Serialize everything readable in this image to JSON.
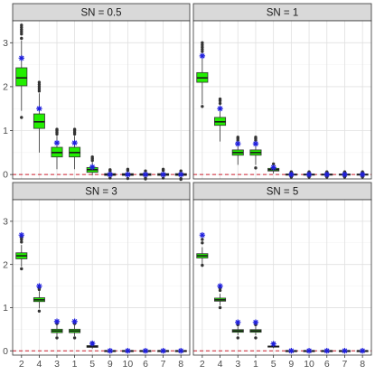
{
  "colors": {
    "box_fill": "#22ee00",
    "box_stroke": "#333333",
    "outlier": "#333333",
    "star": "#1f1fdd",
    "reference_line": "#cc1f2d",
    "grid_major": "#e0e0e0",
    "grid_minor": "#f0f0f0",
    "strip_bg": "#d9d9d9",
    "panel_border": "#333333"
  },
  "chart_data": {
    "type": "boxplot",
    "layout": "2x2 facet grid",
    "categories": [
      "2",
      "4",
      "3",
      "1",
      "5",
      "9",
      "10",
      "6",
      "7",
      "8"
    ],
    "ylim": [
      -0.1,
      3.5
    ],
    "yticks": [
      0,
      1,
      2,
      3
    ],
    "ytick_labels": [
      "0",
      "1",
      "2",
      "3"
    ],
    "reference_line": 0,
    "grid": true,
    "panels": [
      {
        "label": "SN =  0.5",
        "boxes": [
          {
            "cat": "2",
            "q1": 2.02,
            "med": 2.2,
            "q3": 2.43,
            "lo": 1.45,
            "hi": 3.05,
            "star": 2.65,
            "outliers": [
              3.1,
              3.2,
              3.25,
              3.3,
              3.35,
              3.4,
              1.3
            ]
          },
          {
            "cat": "4",
            "q1": 1.05,
            "med": 1.2,
            "q3": 1.38,
            "lo": 0.5,
            "hi": 1.85,
            "star": 1.5,
            "outliers": [
              1.9,
              1.95,
              2.0,
              2.05,
              2.1
            ]
          },
          {
            "cat": "3",
            "q1": 0.4,
            "med": 0.5,
            "q3": 0.62,
            "lo": 0.12,
            "hi": 0.88,
            "star": 0.72,
            "outliers": [
              0.92,
              0.96,
              1.0,
              1.03
            ]
          },
          {
            "cat": "1",
            "q1": 0.4,
            "med": 0.5,
            "q3": 0.62,
            "lo": 0.12,
            "hi": 0.88,
            "star": 0.72,
            "outliers": [
              0.92,
              0.96,
              1.0,
              1.03
            ]
          },
          {
            "cat": "5",
            "q1": 0.05,
            "med": 0.11,
            "q3": 0.16,
            "lo": -0.02,
            "hi": 0.28,
            "star": 0.17,
            "outliers": [
              0.32,
              0.36,
              0.4
            ]
          },
          {
            "cat": "9",
            "q1": -0.02,
            "med": 0.0,
            "q3": 0.02,
            "lo": -0.06,
            "hi": 0.06,
            "star": 0.0,
            "outliers": [
              0.08,
              0.11,
              -0.08
            ]
          },
          {
            "cat": "10",
            "q1": -0.02,
            "med": 0.0,
            "q3": 0.02,
            "lo": -0.06,
            "hi": 0.06,
            "star": 0.0,
            "outliers": [
              0.09,
              0.12,
              -0.09
            ]
          },
          {
            "cat": "6",
            "q1": -0.02,
            "med": 0.0,
            "q3": 0.02,
            "lo": -0.06,
            "hi": 0.06,
            "star": 0.0,
            "outliers": [
              0.08,
              -0.08,
              -0.1
            ]
          },
          {
            "cat": "7",
            "q1": -0.02,
            "med": 0.0,
            "q3": 0.02,
            "lo": -0.06,
            "hi": 0.06,
            "star": 0.0,
            "outliers": [
              0.09,
              0.12,
              -0.08
            ]
          },
          {
            "cat": "8",
            "q1": -0.02,
            "med": 0.0,
            "q3": 0.02,
            "lo": -0.06,
            "hi": 0.06,
            "star": 0.0,
            "outliers": [
              0.08,
              -0.09,
              -0.11
            ]
          }
        ]
      },
      {
        "label": "SN =  1",
        "boxes": [
          {
            "cat": "2",
            "q1": 2.1,
            "med": 2.2,
            "q3": 2.32,
            "lo": 1.6,
            "hi": 2.75,
            "star": 2.7,
            "outliers": [
              2.8,
              2.85,
              2.9,
              2.95,
              3.0,
              1.55
            ]
          },
          {
            "cat": "4",
            "q1": 1.12,
            "med": 1.2,
            "q3": 1.3,
            "lo": 0.75,
            "hi": 1.58,
            "star": 1.5,
            "outliers": [
              1.62,
              1.68,
              1.72
            ]
          },
          {
            "cat": "3",
            "q1": 0.44,
            "med": 0.5,
            "q3": 0.56,
            "lo": 0.22,
            "hi": 0.75,
            "star": 0.7,
            "outliers": [
              0.78,
              0.82,
              0.85
            ]
          },
          {
            "cat": "1",
            "q1": 0.44,
            "med": 0.5,
            "q3": 0.56,
            "lo": 0.22,
            "hi": 0.75,
            "star": 0.7,
            "outliers": [
              0.78,
              0.82,
              0.85,
              0.15
            ]
          },
          {
            "cat": "5",
            "q1": 0.08,
            "med": 0.11,
            "q3": 0.14,
            "lo": 0.02,
            "hi": 0.2,
            "star": 0.16,
            "outliers": [
              0.24
            ]
          },
          {
            "cat": "9",
            "q1": -0.01,
            "med": 0.0,
            "q3": 0.01,
            "lo": -0.04,
            "hi": 0.04,
            "star": 0.0,
            "outliers": [
              0.06,
              -0.06
            ]
          },
          {
            "cat": "10",
            "q1": -0.01,
            "med": 0.0,
            "q3": 0.01,
            "lo": -0.04,
            "hi": 0.04,
            "star": 0.0,
            "outliers": [
              0.06,
              -0.06
            ]
          },
          {
            "cat": "6",
            "q1": -0.01,
            "med": 0.0,
            "q3": 0.01,
            "lo": -0.04,
            "hi": 0.04,
            "star": 0.0,
            "outliers": [
              0.06,
              -0.06
            ]
          },
          {
            "cat": "7",
            "q1": -0.01,
            "med": 0.0,
            "q3": 0.01,
            "lo": -0.04,
            "hi": 0.04,
            "star": 0.0,
            "outliers": [
              0.06,
              -0.06
            ]
          },
          {
            "cat": "8",
            "q1": -0.01,
            "med": 0.0,
            "q3": 0.01,
            "lo": -0.04,
            "hi": 0.04,
            "star": 0.0,
            "outliers": [
              0.06,
              -0.06
            ]
          }
        ]
      },
      {
        "label": "SN =  3",
        "boxes": [
          {
            "cat": "2",
            "q1": 2.13,
            "med": 2.2,
            "q3": 2.27,
            "lo": 1.95,
            "hi": 2.45,
            "star": 2.68,
            "outliers": [
              2.52,
              2.58,
              2.62,
              1.9
            ]
          },
          {
            "cat": "4",
            "q1": 1.14,
            "med": 1.18,
            "q3": 1.23,
            "lo": 0.98,
            "hi": 1.38,
            "star": 1.5,
            "outliers": [
              1.42,
              1.46,
              0.92
            ]
          },
          {
            "cat": "3",
            "q1": 0.42,
            "med": 0.46,
            "q3": 0.5,
            "lo": 0.34,
            "hi": 0.6,
            "star": 0.68,
            "outliers": [
              0.63,
              0.3
            ]
          },
          {
            "cat": "1",
            "q1": 0.42,
            "med": 0.46,
            "q3": 0.5,
            "lo": 0.34,
            "hi": 0.6,
            "star": 0.68,
            "outliers": [
              0.63,
              0.3
            ]
          },
          {
            "cat": "5",
            "q1": 0.08,
            "med": 0.1,
            "q3": 0.12,
            "lo": 0.05,
            "hi": 0.15,
            "star": 0.17,
            "outliers": [
              0.18
            ]
          },
          {
            "cat": "9",
            "q1": -0.005,
            "med": 0.0,
            "q3": 0.005,
            "lo": -0.02,
            "hi": 0.02,
            "star": 0.0,
            "outliers": []
          },
          {
            "cat": "10",
            "q1": -0.005,
            "med": 0.0,
            "q3": 0.005,
            "lo": -0.02,
            "hi": 0.02,
            "star": 0.0,
            "outliers": []
          },
          {
            "cat": "6",
            "q1": -0.005,
            "med": 0.0,
            "q3": 0.005,
            "lo": -0.02,
            "hi": 0.02,
            "star": 0.0,
            "outliers": []
          },
          {
            "cat": "7",
            "q1": -0.005,
            "med": 0.0,
            "q3": 0.005,
            "lo": -0.02,
            "hi": 0.02,
            "star": 0.0,
            "outliers": []
          },
          {
            "cat": "8",
            "q1": -0.005,
            "med": 0.0,
            "q3": 0.005,
            "lo": -0.02,
            "hi": 0.02,
            "star": 0.0,
            "outliers": []
          }
        ]
      },
      {
        "label": "SN =  5",
        "boxes": [
          {
            "cat": "2",
            "q1": 2.15,
            "med": 2.2,
            "q3": 2.25,
            "lo": 2.0,
            "hi": 2.4,
            "star": 2.68,
            "outliers": [
              2.5,
              2.58,
              1.98
            ]
          },
          {
            "cat": "4",
            "q1": 1.15,
            "med": 1.18,
            "q3": 1.22,
            "lo": 1.05,
            "hi": 1.32,
            "star": 1.5,
            "outliers": [
              1.4,
              1.45,
              1.0
            ]
          },
          {
            "cat": "3",
            "q1": 0.43,
            "med": 0.46,
            "q3": 0.49,
            "lo": 0.36,
            "hi": 0.56,
            "star": 0.66,
            "outliers": [
              0.6,
              0.3
            ]
          },
          {
            "cat": "1",
            "q1": 0.43,
            "med": 0.46,
            "q3": 0.49,
            "lo": 0.36,
            "hi": 0.56,
            "star": 0.66,
            "outliers": [
              0.6,
              0.3
            ]
          },
          {
            "cat": "5",
            "q1": 0.09,
            "med": 0.1,
            "q3": 0.11,
            "lo": 0.06,
            "hi": 0.14,
            "star": 0.16,
            "outliers": [
              0.17
            ]
          },
          {
            "cat": "9",
            "q1": -0.004,
            "med": 0.0,
            "q3": 0.004,
            "lo": -0.015,
            "hi": 0.015,
            "star": 0.0,
            "outliers": []
          },
          {
            "cat": "10",
            "q1": -0.004,
            "med": 0.0,
            "q3": 0.004,
            "lo": -0.015,
            "hi": 0.015,
            "star": 0.0,
            "outliers": []
          },
          {
            "cat": "6",
            "q1": -0.004,
            "med": 0.0,
            "q3": 0.004,
            "lo": -0.015,
            "hi": 0.015,
            "star": 0.0,
            "outliers": []
          },
          {
            "cat": "7",
            "q1": -0.004,
            "med": 0.0,
            "q3": 0.004,
            "lo": -0.015,
            "hi": 0.015,
            "star": 0.0,
            "outliers": []
          },
          {
            "cat": "8",
            "q1": -0.004,
            "med": 0.0,
            "q3": 0.004,
            "lo": -0.015,
            "hi": 0.015,
            "star": 0.0,
            "outliers": []
          }
        ]
      }
    ]
  }
}
